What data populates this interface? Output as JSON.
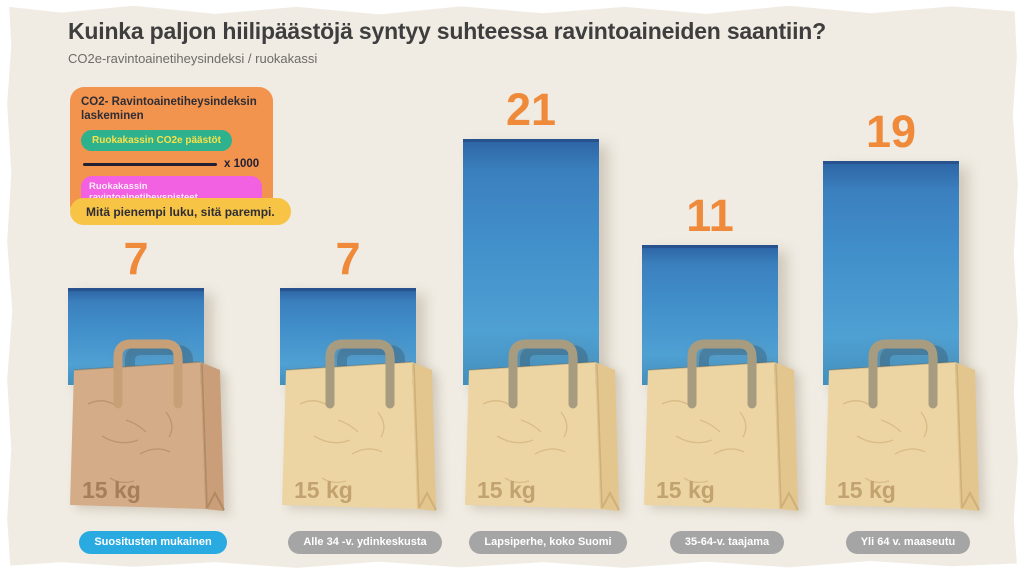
{
  "page": {
    "title": "Kuinka paljon hiilipäästöjä syntyy suhteessa ravintoaineiden saantiin?",
    "subtitle": "CO2e-ravintoainetiheysindeksi / ruokakassi"
  },
  "formula_box": {
    "heading": "CO2- Ravintoainetiheysindeksin laskeminen",
    "numerator": "Ruokakassin CO2e päästöt",
    "multiplier": "x 1000",
    "denominator": "Ruokakassin ravintoainetiheyspisteet",
    "colors": {
      "box_bg": "#F2944E",
      "numerator_bg": "#2DB28D",
      "numerator_text": "#F9E14A",
      "denominator_bg": "#F261E2",
      "denominator_text": "#FCEBFA"
    }
  },
  "note": {
    "text": "Mitä pienempi luku, sitä parempi.",
    "bg": "#F7C445"
  },
  "chart_data": {
    "type": "bar",
    "title": "Kuinka paljon hiilipäästöjä syntyy suhteessa ravintoaineiden saantiin?",
    "subtitle": "CO2e-ravintoainetiheysindeksi / ruokakassi",
    "xlabel": "",
    "ylabel": "CO2e-ravintoainetiheysindeksi / ruokakassi",
    "categories": [
      "Suositusten mukainen",
      "Alle 34 -v. ydinkeskusta",
      "Lapsiperhe, koko Suomi",
      "35-64-v. taajama",
      "Yli 64 v. maaseutu"
    ],
    "values": [
      7,
      7,
      21,
      11,
      19
    ],
    "ylim": [
      0,
      21
    ],
    "grid": false,
    "legend_position": "none",
    "bag_weight_label": "15 kg",
    "highlighted_index": 0,
    "value_label_color": "#EF8A3B",
    "category_pill_colors": [
      "#29ABE2",
      "#A5A5A5",
      "#A5A5A5",
      "#A5A5A5",
      "#A5A5A5"
    ],
    "bar_gradient": [
      "#2E66A6",
      "#418FCA",
      "#4390BC"
    ]
  }
}
